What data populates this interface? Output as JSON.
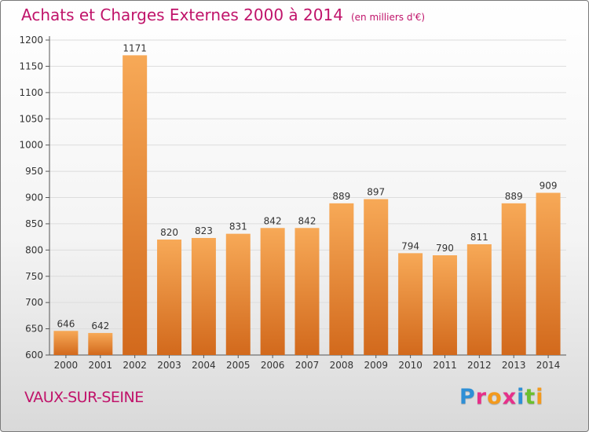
{
  "header": {
    "title": "Achats et Charges Externes 2000 à 2014",
    "unit_note": "(en milliers d'€)"
  },
  "footer": {
    "commune": "VAUX-SUR-SEINE",
    "logo_text": "Proxiti",
    "logo_colors": [
      "#2e8fd6",
      "#e6308a",
      "#f39a1e",
      "#e6308a",
      "#2e8fd6",
      "#6bbf2e",
      "#f39a1e"
    ]
  },
  "colors": {
    "title": "#c0136a",
    "bar_top": "#f7a957",
    "bar_bottom": "#d2691c",
    "grid": "#dcdcdc"
  },
  "chart_data": {
    "type": "bar",
    "title": "Achats et Charges Externes 2000 à 2014",
    "subtitle": "(en milliers d'€)",
    "categories": [
      "2000",
      "2001",
      "2002",
      "2003",
      "2004",
      "2005",
      "2006",
      "2007",
      "2008",
      "2009",
      "2010",
      "2011",
      "2012",
      "2013",
      "2014"
    ],
    "values": [
      646,
      642,
      1171,
      820,
      823,
      831,
      842,
      842,
      889,
      897,
      794,
      790,
      811,
      889,
      909
    ],
    "yticks": [
      600,
      650,
      700,
      750,
      800,
      850,
      900,
      950,
      1000,
      1050,
      1100,
      1150,
      1200
    ],
    "ylim": [
      600,
      1200
    ],
    "xlabel": "",
    "ylabel": "",
    "grid": true
  }
}
